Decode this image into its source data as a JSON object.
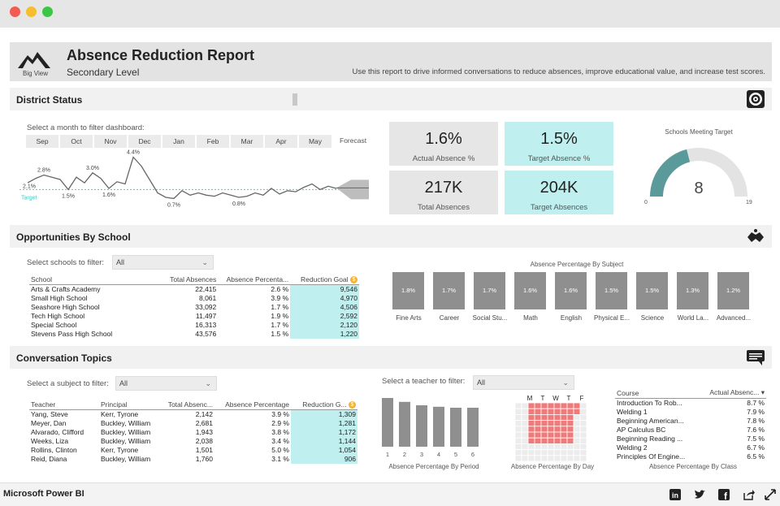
{
  "report": {
    "logo_label": "Big View",
    "title": "Absence Reduction Report",
    "subtitle": "Secondary Level",
    "description": "Use this report to drive informed conversations to reduce absences, improve educational value, and increase test scores."
  },
  "sections": {
    "district": "District Status",
    "opportunities": "Opportunities By School",
    "conversation": "Conversation Topics"
  },
  "district": {
    "filter_label": "Select a month to filter dashboard:",
    "months": [
      "Sep",
      "Oct",
      "Nov",
      "Dec",
      "Jan",
      "Feb",
      "Mar",
      "Apr",
      "May"
    ],
    "forecast_label": "Forecast",
    "target_label": "Target",
    "line_labels": [
      "2.8%",
      "3.0%",
      "4.4%",
      "2.1%",
      "1.5%",
      "1.6%",
      "0.7%",
      "0.8%"
    ],
    "line_points": [
      2.1,
      2.5,
      2.8,
      2.6,
      2.4,
      1.5,
      2.6,
      2.1,
      3.0,
      2.5,
      1.6,
      2.2,
      2.0,
      4.4,
      3.6,
      2.4,
      1.2,
      0.8,
      0.7,
      1.4,
      1.0,
      1.2,
      1.0,
      0.9,
      1.2,
      1.0,
      0.8,
      0.9,
      1.2,
      1.0,
      1.6,
      1.1,
      1.4,
      1.3,
      1.7,
      2.0,
      1.5,
      1.8,
      1.6
    ],
    "target_value": 1.5
  },
  "kpis": [
    {
      "value": "1.6%",
      "caption": "Actual Absence %",
      "color": "#e6e6e6"
    },
    {
      "value": "1.5%",
      "caption": "Target Absence %",
      "color": "#bff0ef"
    },
    {
      "value": "217K",
      "caption": "Total Absences",
      "color": "#e6e6e6"
    },
    {
      "value": "204K",
      "caption": "Target Absences",
      "color": "#bff0ef"
    }
  ],
  "gauge": {
    "title": "Schools Meeting Target",
    "value": "8",
    "min": "0",
    "max": "19",
    "fill_fraction": 0.42,
    "fill_color": "#5b9a9a"
  },
  "schools": {
    "filter_label": "Select schools to filter:",
    "filter_value": "All",
    "headers": [
      "School",
      "Total Absences",
      "Absence Percenta...",
      "Reduction Goal"
    ],
    "rows": [
      [
        "Arts & Crafts Academy",
        "22,415",
        "2.6 %",
        "9,546"
      ],
      [
        "Small High School",
        "8,061",
        "3.9 %",
        "4,970"
      ],
      [
        "Seashore High School",
        "33,092",
        "1.7 %",
        "4,506"
      ],
      [
        "Tech High School",
        "11,497",
        "1.9 %",
        "2,592"
      ],
      [
        "Special School",
        "16,313",
        "1.7 %",
        "2,120"
      ],
      [
        "Stevens Pass High School",
        "43,576",
        "1.5 %",
        "1,220"
      ]
    ]
  },
  "subjects": {
    "title": "Absence Percentage By Subject",
    "tiles": [
      {
        "value": "1.8%",
        "name": "Fine Arts"
      },
      {
        "value": "1.7%",
        "name": "Career"
      },
      {
        "value": "1.7%",
        "name": "Social Stu..."
      },
      {
        "value": "1.6%",
        "name": "Math"
      },
      {
        "value": "1.6%",
        "name": "English"
      },
      {
        "value": "1.5%",
        "name": "Physical E..."
      },
      {
        "value": "1.5%",
        "name": "Science"
      },
      {
        "value": "1.3%",
        "name": "World La..."
      },
      {
        "value": "1.2%",
        "name": "Advanced..."
      }
    ]
  },
  "teachers": {
    "subject_filter_label": "Select a subject to filter:",
    "subject_filter_value": "All",
    "teacher_filter_label": "Select a teacher to filter:",
    "teacher_filter_value": "All",
    "headers": [
      "Teacher",
      "Principal",
      "Total Absenc...",
      "Absence Percentage",
      "Reduction G..."
    ],
    "rows": [
      [
        "Yang, Steve",
        "Kerr, Tyrone",
        "2,142",
        "3.9 %",
        "1,309"
      ],
      [
        "Meyer, Dan",
        "Buckley, William",
        "2,681",
        "2.9 %",
        "1,281"
      ],
      [
        "Alvarado, Clifford",
        "Buckley, William",
        "1,943",
        "3.8 %",
        "1,172"
      ],
      [
        "Weeks, Liza",
        "Buckley, William",
        "2,038",
        "3.4 %",
        "1,144"
      ],
      [
        "Rollins, Clinton",
        "Kerr, Tyrone",
        "1,501",
        "5.0 %",
        "1,054"
      ],
      [
        "Reid, Diana",
        "Buckley, William",
        "1,760",
        "3.1 %",
        "906"
      ]
    ]
  },
  "period_chart": {
    "title": "Absence Percentage By Period",
    "categories": [
      "1",
      "2",
      "3",
      "4",
      "5",
      "6"
    ],
    "values": [
      1.0,
      0.92,
      0.85,
      0.82,
      0.8,
      0.8
    ]
  },
  "day_chart": {
    "title": "Absence Percentage By Day",
    "days": [
      "M",
      "T",
      "W",
      "T",
      "F"
    ]
  },
  "courses": {
    "title": "Absence Percentage By Class",
    "headers": [
      "Course",
      "Actual Absenc..."
    ],
    "rows": [
      [
        "Introduction To Rob...",
        "8.7 %"
      ],
      [
        "Welding 1",
        "7.9 %"
      ],
      [
        "Beginning American...",
        "7.8 %"
      ],
      [
        "AP Calculus BC",
        "7.6 %"
      ],
      [
        "Beginning Reading ...",
        "7.5 %"
      ],
      [
        "Welding 2",
        "6.7 %"
      ],
      [
        "Principles Of Engine...",
        "6.5 %"
      ]
    ]
  },
  "footer": {
    "brand": "Microsoft Power BI"
  }
}
